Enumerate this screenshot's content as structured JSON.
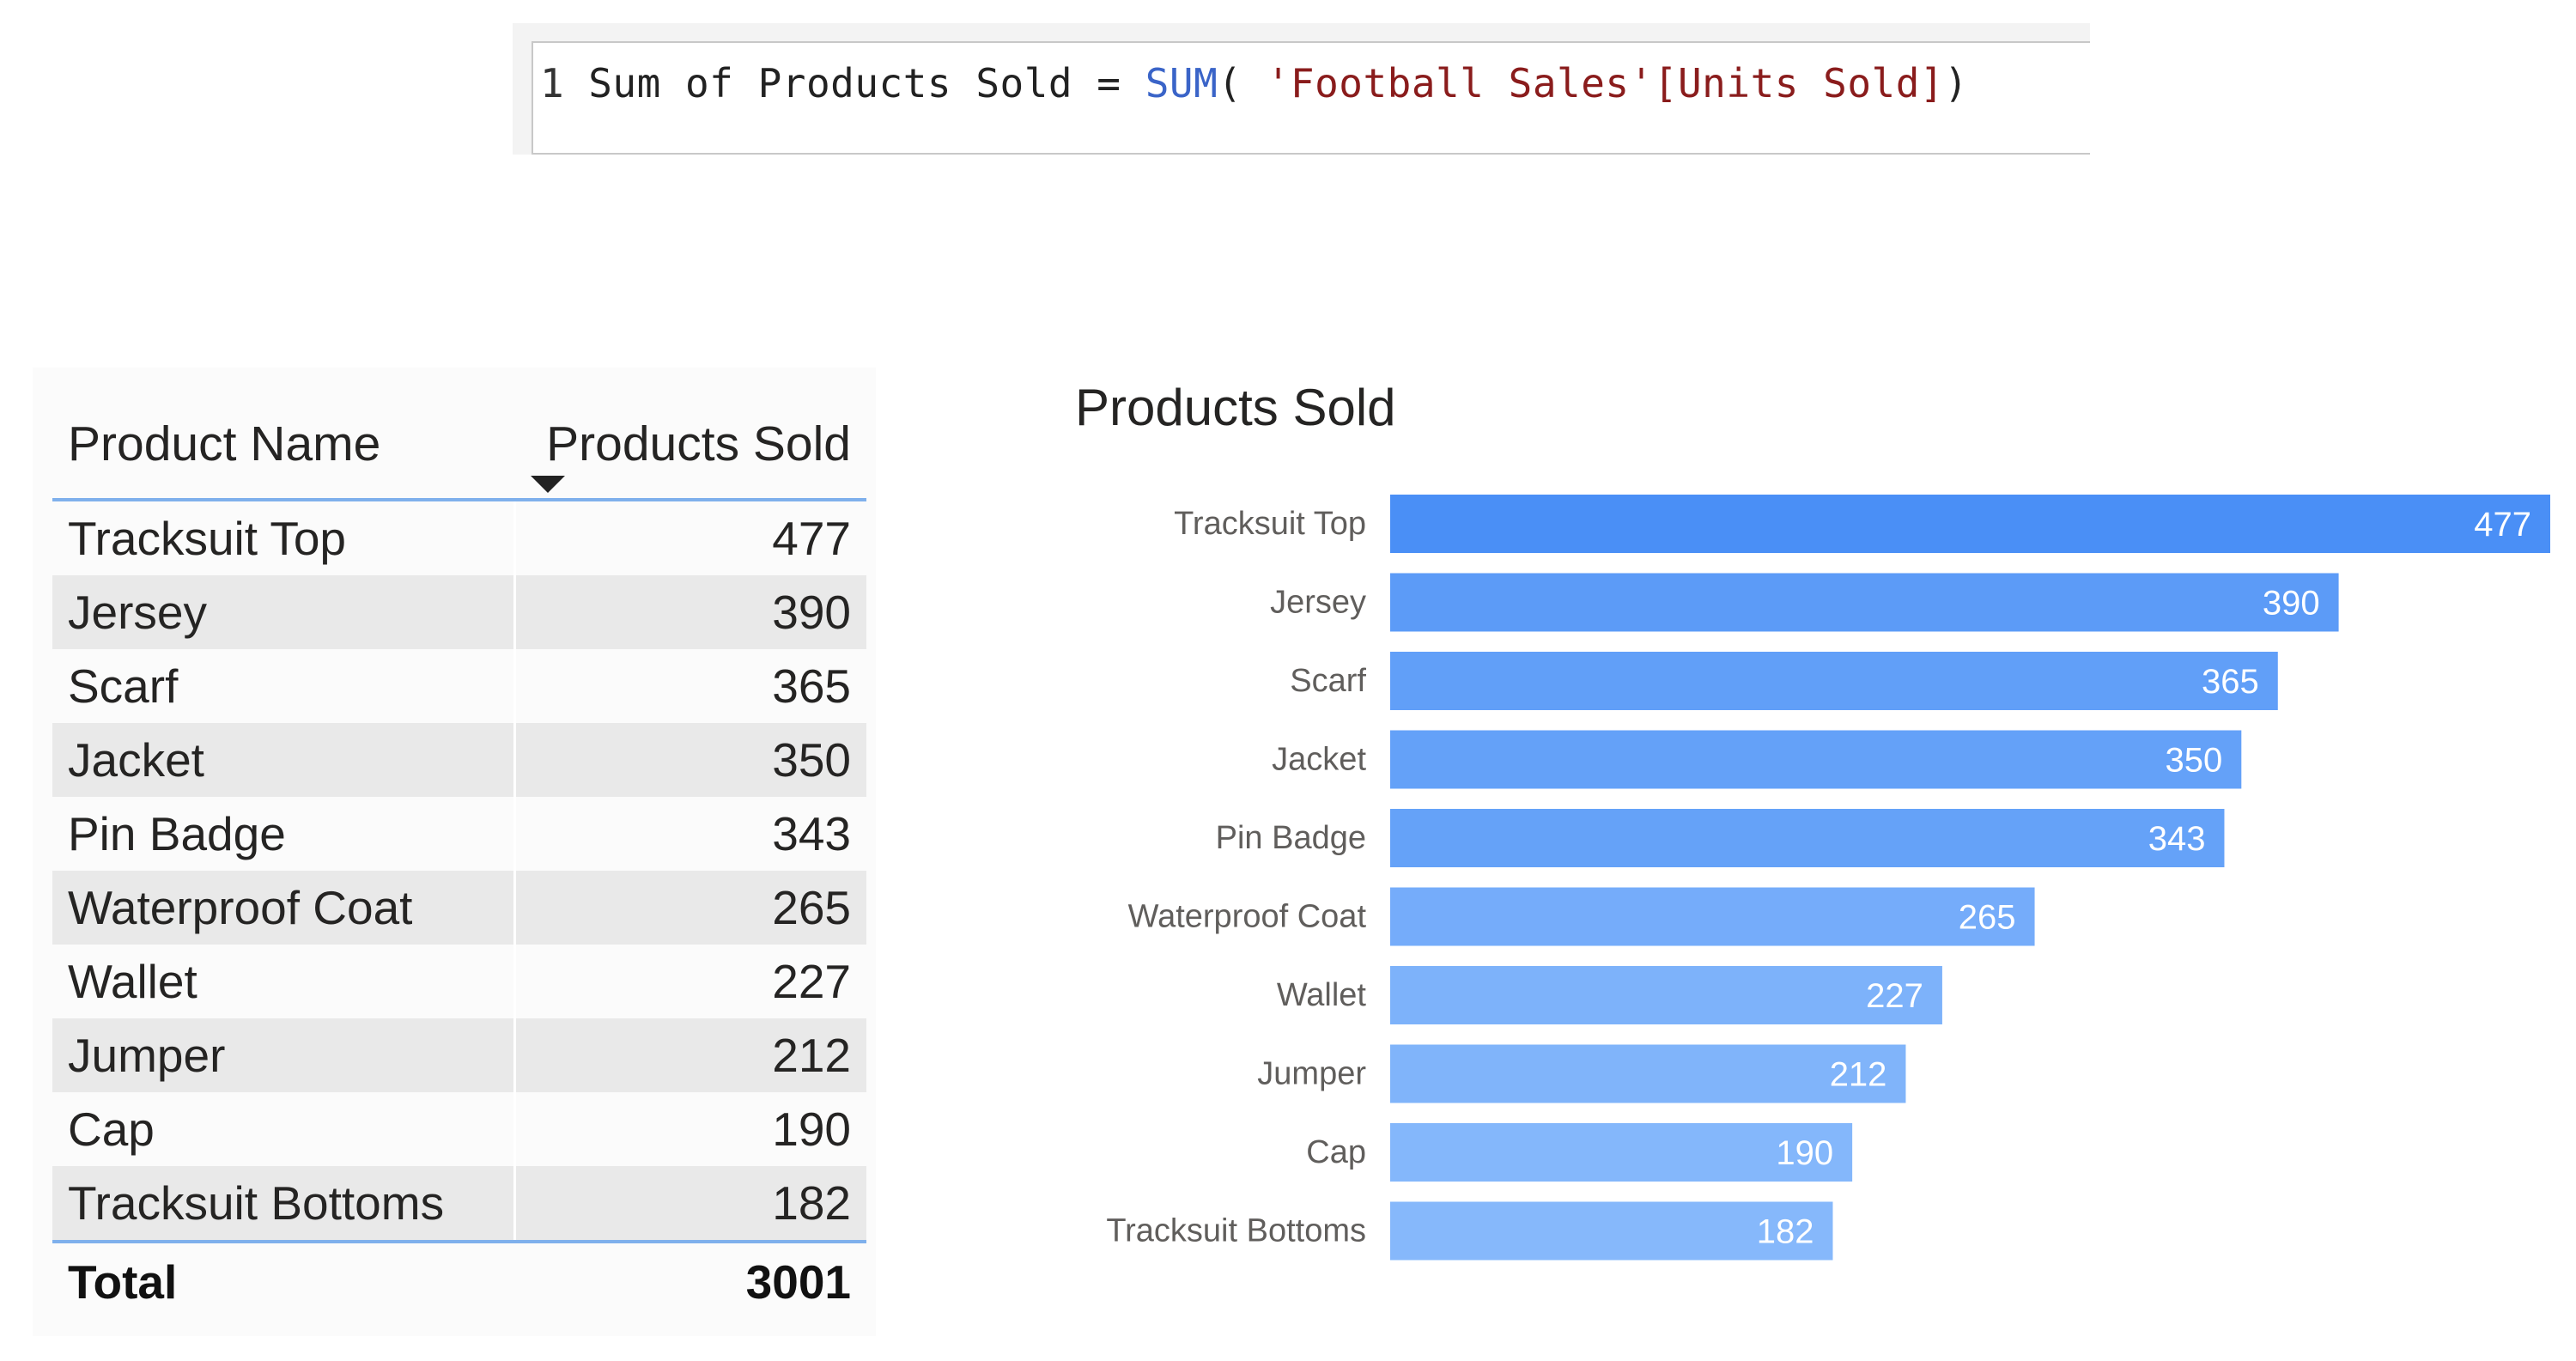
{
  "formula": {
    "line_number": "1",
    "measure_name": "Sum of Products Sold",
    "operator": "=",
    "function_name": "SUM",
    "open_paren": "( ",
    "table_ref": "'Football Sales'[Units Sold]",
    "close_paren": ")"
  },
  "table": {
    "columns": [
      "Product Name",
      "Products Sold"
    ],
    "sorted_column": "Products Sold",
    "sort_direction": "descending",
    "rows": [
      {
        "name": "Tracksuit Top",
        "value": "477"
      },
      {
        "name": "Jersey",
        "value": "390"
      },
      {
        "name": "Scarf",
        "value": "365"
      },
      {
        "name": "Jacket",
        "value": "350"
      },
      {
        "name": "Pin Badge",
        "value": "343"
      },
      {
        "name": "Waterproof Coat",
        "value": "265"
      },
      {
        "name": "Wallet",
        "value": "227"
      },
      {
        "name": "Jumper",
        "value": "212"
      },
      {
        "name": "Cap",
        "value": "190"
      },
      {
        "name": "Tracksuit Bottoms",
        "value": "182"
      }
    ],
    "total_label": "Total",
    "total_value": "3001",
    "header_rule_color": "#7fb0ec"
  },
  "chart_data": {
    "type": "bar",
    "orientation": "horizontal",
    "title": "Products Sold",
    "xlabel": "",
    "ylabel": "",
    "categories": [
      "Tracksuit Top",
      "Jersey",
      "Scarf",
      "Jacket",
      "Pin Badge",
      "Waterproof Coat",
      "Wallet",
      "Jumper",
      "Cap",
      "Tracksuit Bottoms"
    ],
    "values": [
      477,
      390,
      365,
      350,
      343,
      265,
      227,
      212,
      190,
      182
    ],
    "xlim": [
      0,
      477
    ],
    "data_labels": true,
    "grid": false,
    "legend": "none",
    "colors": {
      "max": "#4a8ff6",
      "min": "#86b8fb",
      "label_text": "#ffffff",
      "category_text": "#605e5c"
    }
  }
}
